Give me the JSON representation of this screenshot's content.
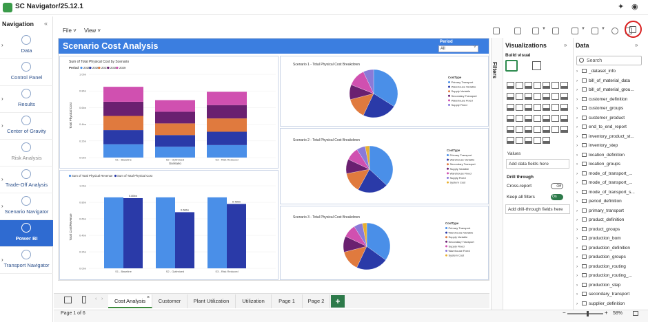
{
  "app": {
    "title": "SC Navigator/25.12.1"
  },
  "nav": {
    "title": "Navigation",
    "items": [
      {
        "label": "Data",
        "icon": "grid-icon"
      },
      {
        "label": "Control Panel",
        "icon": "control-panel-icon"
      },
      {
        "label": "Results",
        "icon": "globe-icon"
      },
      {
        "label": "Center of Gravity",
        "icon": "target-icon"
      },
      {
        "label": "Risk Analysis",
        "icon": "risk-icon"
      },
      {
        "label": "Trade-Off Analysis",
        "icon": "chart-icon"
      },
      {
        "label": "Scenario Navigator",
        "icon": "layers-icon"
      },
      {
        "label": "Power BI",
        "icon": "powerbi-icon"
      },
      {
        "label": "Transport Navigator",
        "icon": "transport-icon"
      }
    ]
  },
  "toolbar": {
    "file": "File",
    "view": "View"
  },
  "report": {
    "title": "Scenario Cost Analysis",
    "period_label": "Period",
    "period_value": "All"
  },
  "panes": {
    "filters": "Filters",
    "visualizations": "Visualizations",
    "build_visual": "Build visual",
    "values": "Values",
    "values_placeholder": "Add data fields here",
    "drill_through": "Drill through",
    "cross_report": "Cross-report",
    "cross_report_state": "Off",
    "keep_all_filters": "Keep all filters",
    "keep_all_filters_state": "On",
    "drill_placeholder": "Add drill-through fields here",
    "data": "Data",
    "search_placeholder": "Search"
  },
  "data_tables": [
    "_dataset_info",
    "bill_of_material_data",
    "bill_of_material_grou...",
    "customer_definition",
    "customer_groups",
    "customer_product",
    "end_to_end_report",
    "inventory_product_st...",
    "inventory_step",
    "location_definition",
    "location_groups",
    "mode_of_transport_...",
    "mode_of_transport_...",
    "mode_of_transport_s...",
    "period_definition",
    "primary_transport",
    "product_definition",
    "product_groups",
    "production_bom",
    "production_definition",
    "production_groups",
    "production_routing",
    "production_routing_...",
    "production_step",
    "secondary_transport",
    "supplier_definition"
  ],
  "tabs": [
    "Cost Analysis",
    "Customer",
    "Plant Utilization",
    "Utilization",
    "Page 1",
    "Page 2"
  ],
  "status": {
    "page": "Page 1 of 6",
    "zoom": "58%"
  },
  "colors": {
    "accent": "#3b7ee0",
    "powerbi_green": "#2d7a4a",
    "highlight": "#d92020"
  },
  "chart_data": [
    {
      "type": "bar",
      "title": "Sum of Total Physical Cost by Scenario",
      "legend_title": "Period",
      "legend": [
        "2025",
        "2026",
        "2027",
        "2028",
        "2029"
      ],
      "colors": [
        "#4a8fe8",
        "#2a3aa8",
        "#e07a3e",
        "#6a2070",
        "#d050b0"
      ],
      "xlabel": "Scenario",
      "ylabel": "Total Physical Cost",
      "categories": [
        "S1 - Baseline",
        "S2 - Optimized",
        "S3 - Risk Reduced"
      ],
      "stacked": true,
      "ylim": [
        0,
        1.0
      ],
      "yticks": [
        "0.0bn",
        "0.2bn",
        "0.4bn",
        "0.6bn",
        "0.8bn",
        "1.0bn"
      ],
      "series": [
        {
          "name": "2025",
          "values": [
            0.16,
            0.13,
            0.15
          ]
        },
        {
          "name": "2026",
          "values": [
            0.17,
            0.14,
            0.16
          ]
        },
        {
          "name": "2027",
          "values": [
            0.17,
            0.14,
            0.16
          ]
        },
        {
          "name": "2028",
          "values": [
            0.17,
            0.14,
            0.16
          ]
        },
        {
          "name": "2029",
          "values": [
            0.18,
            0.14,
            0.16
          ]
        }
      ]
    },
    {
      "type": "bar",
      "legend": [
        "Sum of Total Physical Revenue",
        "Sum of Total Physical Cost"
      ],
      "colors": [
        "#4a8fe8",
        "#2a3aa8"
      ],
      "xlabel": "",
      "ylabel": "Total Cost/Revenue",
      "categories": [
        "S1 - Baseline",
        "S2 - Optimized",
        "S3 - Risk Reduced"
      ],
      "ylim": [
        0,
        1.0
      ],
      "yticks": [
        "0.0bn",
        "0.2bn",
        "0.4bn",
        "0.6bn",
        "0.8bn",
        "1.0bn"
      ],
      "data_labels": [
        "0.85bn",
        "0.68bn",
        "0.78bn"
      ],
      "series": [
        {
          "name": "Sum of Total Physical Revenue",
          "values": [
            0.86,
            0.86,
            0.86
          ]
        },
        {
          "name": "Sum of Total Physical Cost",
          "values": [
            0.85,
            0.68,
            0.78
          ]
        }
      ]
    },
    {
      "type": "pie",
      "title": "Scenario 1 - Total Physical Cost Breakdown",
      "legend_title": "CostType",
      "categories": [
        "Primary Transport",
        "Warehouse Variable",
        "Supply Variable",
        "Secondary Transport",
        "Warehouse Fixed",
        "Supply Fixed"
      ],
      "values": [
        0.34,
        0.23,
        0.14,
        0.1,
        0.12,
        0.07
      ],
      "colors": [
        "#4a8fe8",
        "#2a3aa8",
        "#e07a3e",
        "#6a2070",
        "#d050b0",
        "#8a7ad8"
      ]
    },
    {
      "type": "pie",
      "title": "Scenario 2 - Total Physical Cost Breakdown",
      "legend_title": "CostType",
      "categories": [
        "Primary Transport",
        "Warehouse Variable",
        "Secondary Transport",
        "Supply Variable",
        "Warehouse Fixed",
        "Supply Fixed",
        "System Cost"
      ],
      "values": [
        0.37,
        0.21,
        0.14,
        0.1,
        0.09,
        0.06,
        0.03
      ],
      "colors": [
        "#4a8fe8",
        "#2a3aa8",
        "#e07a3e",
        "#6a2070",
        "#d050b0",
        "#8a7ad8",
        "#e8b030"
      ]
    },
    {
      "type": "pie",
      "title": "Scenario 3 - Total Physical Cost Breakdown",
      "legend_title": "CostType",
      "categories": [
        "Primary Transport",
        "Warehouse Variable",
        "Supply Variable",
        "Secondary Transport",
        "Supply Fixed",
        "Warehouse Fixed",
        "System Cost"
      ],
      "values": [
        0.35,
        0.22,
        0.14,
        0.11,
        0.09,
        0.06,
        0.03
      ],
      "colors": [
        "#4a8fe8",
        "#2a3aa8",
        "#e07a3e",
        "#6a2070",
        "#d050b0",
        "#8a7ad8",
        "#e8b030"
      ]
    }
  ]
}
